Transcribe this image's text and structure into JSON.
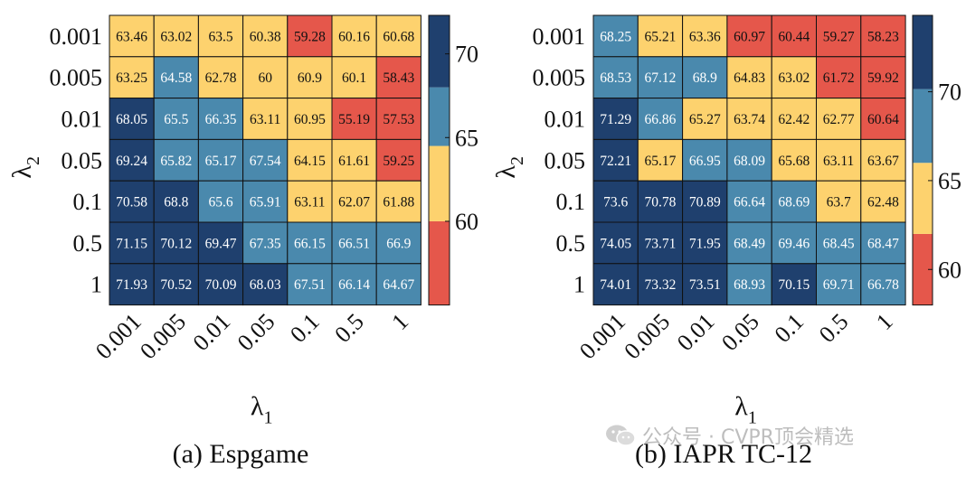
{
  "colors": {
    "blue_dark": "#1f406e",
    "blue_mid": "#4a89ad",
    "yellow": "#fdd26e",
    "red": "#e5574b",
    "grid": "#111111"
  },
  "watermark": {
    "icon": "wechat-logo-icon",
    "text": "公众号 · CVPR顶会精选"
  },
  "chart_data": [
    {
      "type": "heatmap",
      "title": "(a)  Espgame",
      "xlabel": "λ",
      "xlabel_sub": "1",
      "ylabel": "λ",
      "ylabel_sub": "2",
      "x_categories": [
        "0.001",
        "0.005",
        "0.01",
        "0.05",
        "0.1",
        "0.5",
        "1"
      ],
      "y_categories": [
        "0.001",
        "0.005",
        "0.01",
        "0.05",
        "0.1",
        "0.5",
        "1"
      ],
      "values": [
        [
          63.46,
          63.02,
          63.5,
          60.38,
          59.28,
          60.16,
          60.68
        ],
        [
          63.25,
          64.58,
          62.78,
          60,
          60.9,
          60.1,
          58.43
        ],
        [
          68.05,
          65.5,
          66.35,
          63.11,
          60.95,
          55.19,
          57.53
        ],
        [
          69.24,
          65.82,
          65.17,
          67.54,
          64.15,
          61.61,
          59.25
        ],
        [
          70.58,
          68.8,
          65.6,
          65.91,
          63.11,
          62.07,
          61.88
        ],
        [
          71.15,
          70.12,
          69.47,
          67.35,
          66.15,
          66.51,
          66.9
        ],
        [
          71.93,
          70.52,
          70.09,
          68.03,
          67.51,
          66.14,
          64.67
        ]
      ],
      "colorbar": {
        "range": [
          55,
          72.3
        ],
        "ticks": [
          60,
          65,
          70
        ],
        "bins": [
          {
            "from": 55,
            "to": 60,
            "color": "#e5574b"
          },
          {
            "from": 60,
            "to": 64.5,
            "color": "#fdd26e"
          },
          {
            "from": 64.5,
            "to": 68,
            "color": "#4a89ad"
          },
          {
            "from": 68,
            "to": 72.3,
            "color": "#1f406e"
          }
        ]
      }
    },
    {
      "type": "heatmap",
      "title": "(b)  IAPR TC-12",
      "xlabel": "λ",
      "xlabel_sub": "1",
      "ylabel": "λ",
      "ylabel_sub": "2",
      "x_categories": [
        "0.001",
        "0.005",
        "0.01",
        "0.05",
        "0.1",
        "0.5",
        "1"
      ],
      "y_categories": [
        "0.001",
        "0.005",
        "0.01",
        "0.05",
        "0.1",
        "0.5",
        "1"
      ],
      "values": [
        [
          68.25,
          65.21,
          63.36,
          60.97,
          60.44,
          59.27,
          58.23
        ],
        [
          68.53,
          67.12,
          68.9,
          64.83,
          63.02,
          61.72,
          59.92
        ],
        [
          71.29,
          66.86,
          65.27,
          63.74,
          62.42,
          62.77,
          60.64
        ],
        [
          72.21,
          65.17,
          66.95,
          68.09,
          65.68,
          63.11,
          63.67
        ],
        [
          73.6,
          70.78,
          70.89,
          66.64,
          68.69,
          63.7,
          62.48
        ],
        [
          74.05,
          73.71,
          71.95,
          68.49,
          69.46,
          68.45,
          68.47
        ],
        [
          74.01,
          73.32,
          73.51,
          68.93,
          70.15,
          69.71,
          66.78
        ]
      ],
      "colorbar": {
        "range": [
          58,
          74.3
        ],
        "ticks": [
          60,
          65,
          70
        ],
        "bins": [
          {
            "from": 58,
            "to": 62,
            "color": "#e5574b"
          },
          {
            "from": 62,
            "to": 66,
            "color": "#fdd26e"
          },
          {
            "from": 66,
            "to": 70.15,
            "color": "#4a89ad"
          },
          {
            "from": 70.15,
            "to": 74.3,
            "color": "#1f406e"
          }
        ]
      }
    }
  ]
}
